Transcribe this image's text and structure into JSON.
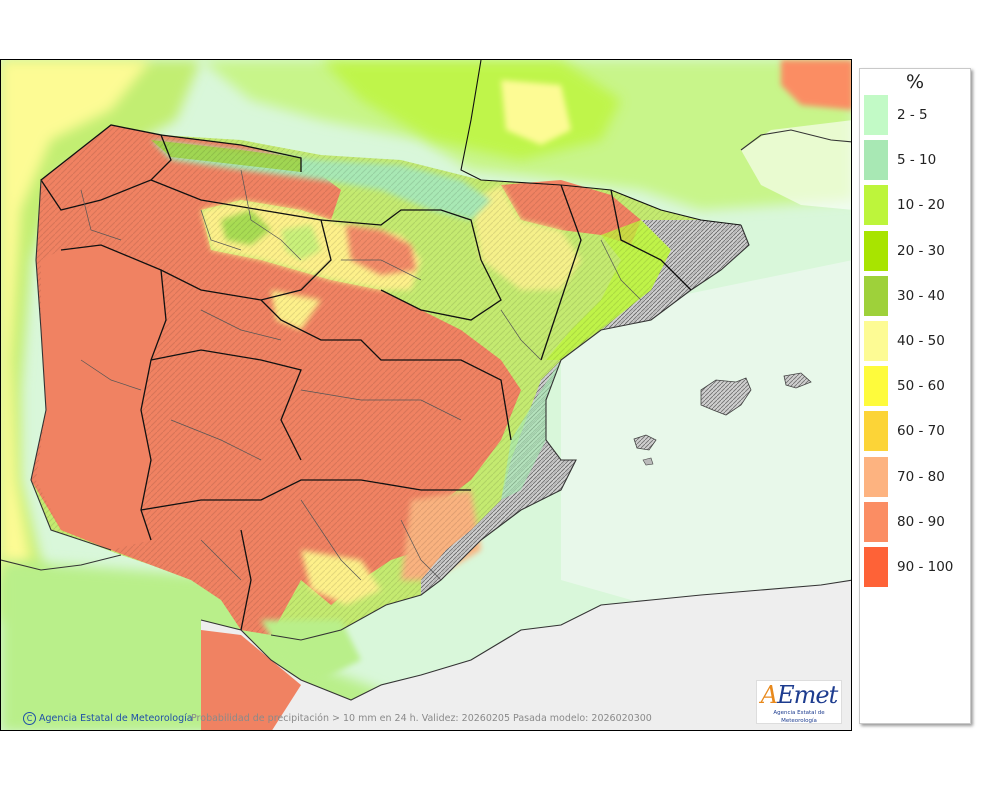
{
  "map": {
    "copyright": "Agencia Estatal de Meteorología",
    "copyright_symbol": "C",
    "caption": "Probabilidad de precipitación > 10 mm en 24 h. Validez: 20260205 Pasada modelo: 2026020300",
    "logo": {
      "wordmark_a": "A",
      "wordmark_rest": "Emet",
      "subtitle": "Agencia Estatal de Meteorología"
    }
  },
  "legend": {
    "unit": "%",
    "items": [
      {
        "label": "2 - 5",
        "color": "#c2fac6"
      },
      {
        "label": "5 - 10",
        "color": "#a8e8b4"
      },
      {
        "label": "10 - 20",
        "color": "#bdf53b"
      },
      {
        "label": "20 - 30",
        "color": "#a8e400"
      },
      {
        "label": "30 - 40",
        "color": "#9ed13a"
      },
      {
        "label": "40 - 50",
        "color": "#fdfb94"
      },
      {
        "label": "50 - 60",
        "color": "#fefb3c"
      },
      {
        "label": "60 - 70",
        "color": "#fcd437"
      },
      {
        "label": "70 - 80",
        "color": "#fdb380"
      },
      {
        "label": "80 - 90",
        "color": "#fb8d63"
      },
      {
        "label": "90 - 100",
        "color": "#fe6237"
      }
    ]
  }
}
